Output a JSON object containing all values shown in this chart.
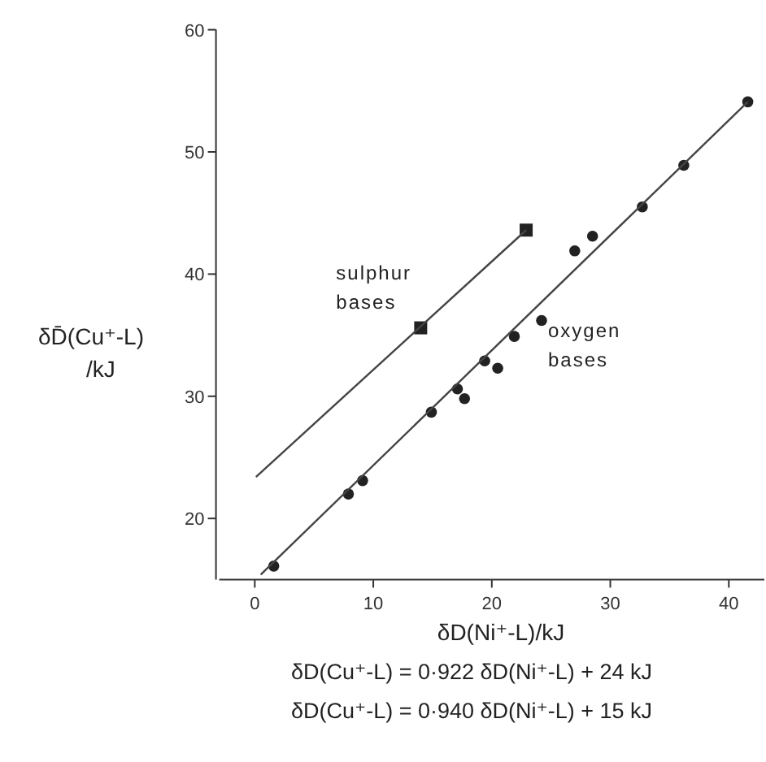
{
  "chart_data": {
    "type": "scatter",
    "xlabel": "δD(Ni⁺-L)/kJ",
    "ylabel": "δD̄(Cu⁺-L) /kJ",
    "xlim": [
      -3,
      43
    ],
    "ylim": [
      15,
      60
    ],
    "xticks": [
      0,
      10,
      20,
      30,
      40
    ],
    "yticks": [
      20,
      30,
      40,
      50,
      60
    ],
    "grid": false,
    "series": [
      {
        "name": "sulphur bases",
        "marker": "square",
        "color": "#222222",
        "x": [
          14.0,
          22.9
        ],
        "values": [
          35.6,
          43.6
        ]
      },
      {
        "name": "oxygen bases",
        "marker": "circle",
        "color": "#222222",
        "x": [
          1.6,
          7.9,
          9.1,
          14.9,
          17.1,
          17.7,
          19.4,
          20.5,
          21.9,
          24.2,
          27.0,
          28.5,
          32.7,
          36.2,
          41.6
        ],
        "values": [
          16.1,
          22.0,
          23.1,
          28.7,
          30.6,
          29.8,
          32.9,
          32.3,
          34.9,
          36.2,
          41.9,
          43.1,
          45.5,
          48.9,
          54.1
        ]
      },
      {
        "type": "line",
        "marker": "none",
        "line_style": "solid",
        "color": "#444444",
        "x": [
          0.1,
          22.9
        ],
        "values": [
          23.4,
          43.6
        ]
      },
      {
        "type": "line",
        "marker": "none",
        "line_style": "solid",
        "color": "#444444",
        "x": [
          0.5,
          41.6
        ],
        "values": [
          15.4,
          54.1
        ]
      }
    ],
    "annotations": [
      "δD(Cu⁺-L) = 0·922 δD(Ni⁺-L) + 24 kJ",
      "δD(Cu⁺-L) = 0·940 δD(Ni⁺-L) + 15 kJ"
    ]
  }
}
